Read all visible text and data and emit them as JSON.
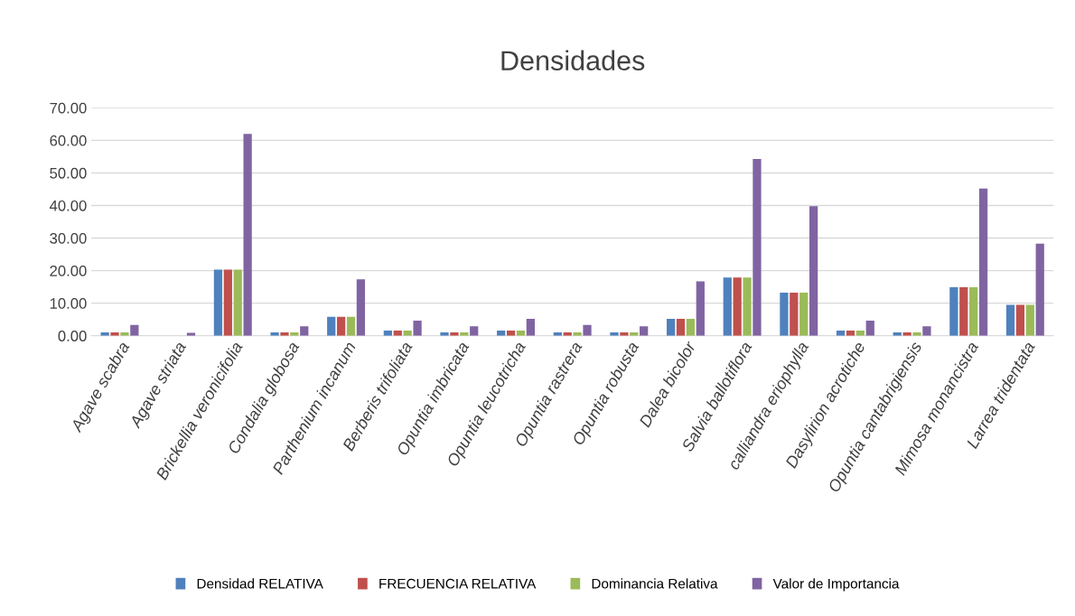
{
  "chart_data": {
    "type": "bar",
    "title": "Densidades",
    "categories": [
      "Agave scabra",
      "Agave striata",
      "Brickellia veronicifolia",
      "Condalia globosa",
      "Parthenium incanum",
      "Berberis trifoliata",
      "Opuntia imbricata",
      "Opuntia leucotricha",
      "Opuntia rastrera",
      "Opuntia robusta",
      "Dalea bicolor",
      "Salvia ballotiflora",
      "calliandra eriophylla",
      "Dasylirion acrotiche",
      "Opuntia cantabrigiensis",
      "Mimosa monancistra",
      "Larrea tridentata"
    ],
    "series": [
      {
        "name": "Densidad RELATIVA",
        "color": "#4f81bd",
        "values": [
          1.0,
          null,
          20.3,
          1.0,
          5.8,
          1.6,
          1.0,
          1.6,
          1.0,
          1.0,
          5.2,
          17.9,
          13.2,
          1.6,
          1.0,
          14.9,
          9.5
        ]
      },
      {
        "name": "FRECUENCIA RELATIVA",
        "color": "#c0504d",
        "values": [
          1.0,
          null,
          20.3,
          1.0,
          5.8,
          1.6,
          1.0,
          1.6,
          1.0,
          1.0,
          5.2,
          17.9,
          13.2,
          1.6,
          1.0,
          14.9,
          9.5
        ]
      },
      {
        "name": "Dominancia Relativa",
        "color": "#9bbb59",
        "values": [
          1.0,
          null,
          20.3,
          1.0,
          5.8,
          1.6,
          1.0,
          1.6,
          1.0,
          1.0,
          5.2,
          17.9,
          13.2,
          1.6,
          1.0,
          14.9,
          9.5
        ]
      },
      {
        "name": "Valor de Importancia",
        "color": "#8064a2",
        "values": [
          3.3,
          0.9,
          62.0,
          2.9,
          17.3,
          4.6,
          2.9,
          5.2,
          3.3,
          2.9,
          16.7,
          54.3,
          39.8,
          4.6,
          2.9,
          45.2,
          28.3
        ]
      }
    ],
    "ylim": [
      0,
      70
    ],
    "yticks": [
      {
        "value": 0,
        "label": "0.00"
      },
      {
        "value": 10,
        "label": "10.00"
      },
      {
        "value": 20,
        "label": "20.00"
      },
      {
        "value": 30,
        "label": "30.00"
      },
      {
        "value": 40,
        "label": "40.00"
      },
      {
        "value": 50,
        "label": "50.00"
      },
      {
        "value": 60,
        "label": "60.00"
      },
      {
        "value": 70,
        "label": "70.00"
      }
    ],
    "grid": "y",
    "legend": "bottom"
  }
}
